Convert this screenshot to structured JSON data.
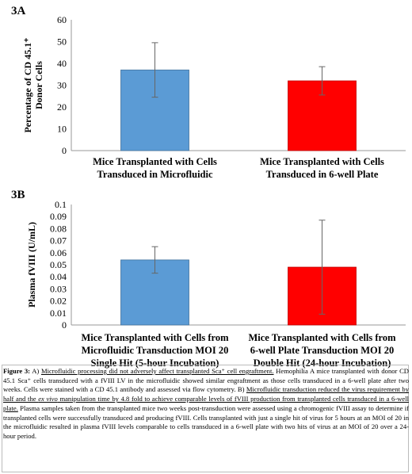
{
  "chart_data": [
    {
      "type": "bar",
      "panel": "3A",
      "ylabel_lines": [
        "Percentage of CD 45.1⁺",
        "Donor Cells"
      ],
      "ylim": [
        0,
        60
      ],
      "yticks": [
        "0",
        "10",
        "20",
        "30",
        "40",
        "50",
        "60"
      ],
      "categories": [
        [
          "Mice Transplanted with Cells",
          "Transduced in Microfluidic"
        ],
        [
          "Mice Transplanted with Cells",
          "Transduced in 6-well Plate"
        ]
      ],
      "values": [
        37.0,
        32.0
      ],
      "error": [
        12.5,
        6.5
      ],
      "colors": [
        "#5b9bd5",
        "#ff0000"
      ],
      "grid": false
    },
    {
      "type": "bar",
      "panel": "3B",
      "ylabel_lines": [
        "Plasma fVIII (U/mL)"
      ],
      "ylim": [
        0,
        0.1
      ],
      "yticks": [
        "0",
        "0.01",
        "0.02",
        "0.03",
        "0.04",
        "0.05",
        "0.06",
        "0.07",
        "0.08",
        "0.09",
        "0.1"
      ],
      "categories": [
        [
          "Mice Transplanted with Cells from",
          "Microfluidic Transduction  MOI 20",
          "Single Hit  (5-hour Incubation)"
        ],
        [
          "Mice Transplanted with Cells from",
          "6-well Plate Transduction MOI 20",
          "Double Hit (24-hour Incubation)"
        ]
      ],
      "values": [
        0.054,
        0.048
      ],
      "error": [
        0.011,
        0.039
      ],
      "colors": [
        "#5b9bd5",
        "#ff0000"
      ],
      "grid": false
    }
  ],
  "caption": {
    "fig_label": "Figure 3:",
    "a_marker": " A) ",
    "a_underlined": "Microfluidic processing did not adversely affect transplanted Sca⁺ cell engraftment.",
    "a_text": " Hemophilia A mice transplanted with donor CD 45.1 Sca⁺ cells transduced with a fVIII LV in the microfluidic showed similar engraftment as those cells transduced in a 6-well plate after two weeks. Cells were stained with a CD 45.1 antibody and assessed via flow cytometry.",
    "b_marker": " B) ",
    "b_underlined_1": "Microfluidic transduction reduced the virus requirement by half and the ",
    "b_underlined_ex_vivo": "ex vivo",
    "b_underlined_2": " manipulation time by 4.8 fold to achieve comparable levels of fVIII production from transplanted cells transduced in a 6-well plate.",
    "b_text": " Plasma samples taken from the transplanted mice two weeks post-transduction were assessed using a chromogenic fVIII assay to determine if transplanted cells were successfully transduced and producing fVIII. Cells transplanted with just a single hit of virus for 5 hours at an MOI of 20 in the microfluidic resulted in plasma fVIII levels comparable to cells transduced in a 6-well plate with two hits of virus at an MOI of 20 over a 24-hour period."
  }
}
